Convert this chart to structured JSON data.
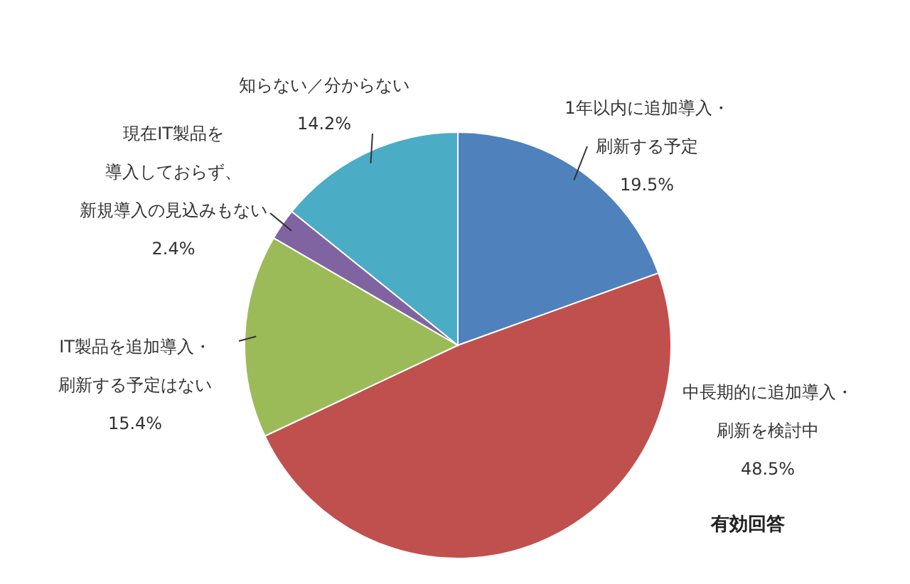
{
  "chart_data": {
    "type": "pie",
    "categories": [
      "1年以内に追加導入・刷新する予定",
      "中長期的に追加導入・刷新を検討中",
      "IT製品を追加導入・刷新する予定はない",
      "現在IT製品を導入しておらず、新規導入の見込みもない",
      "知らない／分からない"
    ],
    "values": [
      19.5,
      48.5,
      15.4,
      2.4,
      14.2
    ],
    "value_labels": [
      "19.5%",
      "48.5%",
      "15.4%",
      "2.4%",
      "14.2%"
    ],
    "colors": [
      "#4f81bd",
      "#c0504d",
      "#9bbb59",
      "#8064a2",
      "#4bacc6"
    ],
    "annotations": [
      "有効回答"
    ],
    "legend": false
  }
}
